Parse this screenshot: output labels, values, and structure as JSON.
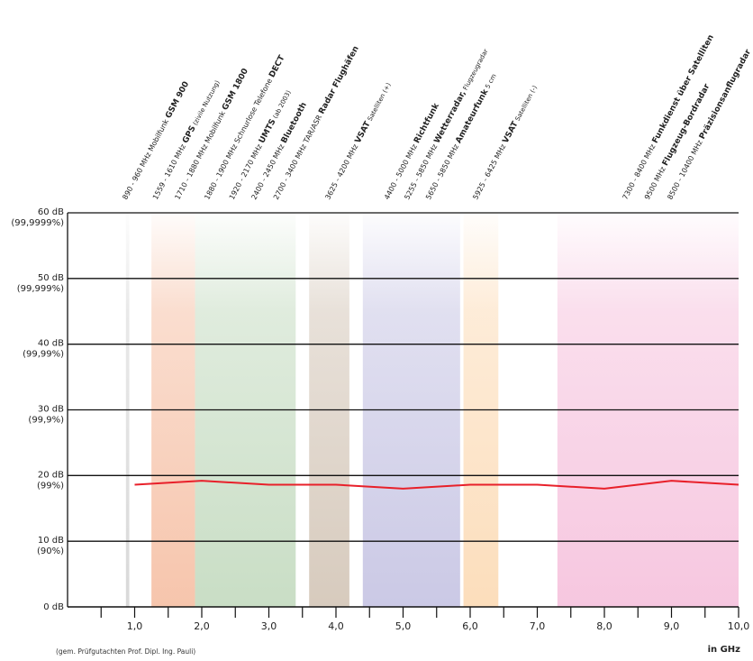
{
  "chart_data": {
    "type": "line",
    "x_unit_label": "in GHz",
    "xlim": [
      0,
      10
    ],
    "ylim": [
      0,
      60
    ],
    "x_ticks": [
      "1,0",
      "2,0",
      "3,0",
      "4,0",
      "5,0",
      "6,0",
      "7,0",
      "8,0",
      "9,0",
      "10,0"
    ],
    "y_ticks": [
      {
        "value": 0,
        "label": "0 dB",
        "sub": ""
      },
      {
        "value": 10,
        "label": "10 dB",
        "sub": "(90%)"
      },
      {
        "value": 20,
        "label": "20 dB",
        "sub": "(99%)"
      },
      {
        "value": 30,
        "label": "30 dB",
        "sub": "(99,9%)"
      },
      {
        "value": 40,
        "label": "40 dB",
        "sub": "(99,99%)"
      },
      {
        "value": 50,
        "label": "50 dB",
        "sub": "(99,999%)"
      },
      {
        "value": 60,
        "label": "60 dB",
        "sub": "(99,9999%)"
      }
    ],
    "grid": "horizontal",
    "series": [
      {
        "color": "#e8202a",
        "points": [
          [
            1.0,
            18.6
          ],
          [
            2.0,
            19.2
          ],
          [
            3.0,
            18.6
          ],
          [
            4.0,
            18.6
          ],
          [
            5.0,
            18.0
          ],
          [
            6.0,
            18.6
          ],
          [
            7.0,
            18.6
          ],
          [
            8.0,
            18.0
          ],
          [
            9.0,
            19.2
          ],
          [
            10.0,
            18.6
          ]
        ]
      }
    ],
    "bands": [
      {
        "from": 0.87,
        "to": 0.92,
        "color": "#d7d7d7"
      },
      {
        "from": 1.25,
        "to": 1.9,
        "color": "#f6c2a8"
      },
      {
        "from": 1.9,
        "to": 3.4,
        "color": "#c6dcc2"
      },
      {
        "from": 3.6,
        "to": 4.2,
        "color": "#d5c8ba"
      },
      {
        "from": 4.4,
        "to": 5.85,
        "color": "#c8c6e4"
      },
      {
        "from": 5.9,
        "to": 6.42,
        "color": "#fcdcb8"
      },
      {
        "from": 7.3,
        "to": 10.4,
        "color": "#f6c4de"
      }
    ],
    "band_labels": [
      {
        "x": 0.88,
        "plain": "890 - 960 MHz ",
        "mid": "Mobilfunk ",
        "bold": "GSM 900",
        "small": ""
      },
      {
        "x": 1.33,
        "plain": "1559 - 1610 MHz ",
        "mid": "",
        "bold": "GPS",
        "small": " (zivile Nutzung)"
      },
      {
        "x": 1.66,
        "plain": "1710 - 1880 MHz ",
        "mid": "Mobilfunk ",
        "bold": "GSM 1800",
        "small": ""
      },
      {
        "x": 2.1,
        "plain": "1880 - 1900 MHz ",
        "mid": "Schnurlose Telefone ",
        "bold": "DECT",
        "small": ""
      },
      {
        "x": 2.47,
        "plain": "1920 - 2170 MHz ",
        "mid": "",
        "bold": "UMTS",
        "small": " (ab 2003)"
      },
      {
        "x": 2.8,
        "plain": "2400 - 2450 MHz ",
        "mid": "",
        "bold": "Bluetooth",
        "small": ""
      },
      {
        "x": 3.13,
        "plain": "2700 - 3400 MHz ",
        "mid": "TAR/ASR ",
        "bold": "Radar Flughäfen",
        "small": ""
      },
      {
        "x": 3.9,
        "plain": "3625 - 4200 MHz ",
        "mid": "",
        "bold": "VSAT",
        "small": " Satelliten (+)"
      },
      {
        "x": 4.78,
        "plain": "4400 - 5000 MHz ",
        "mid": "",
        "bold": "Richtfunk",
        "small": ""
      },
      {
        "x": 5.08,
        "plain": "5255 - 5850 MHz ",
        "mid": "",
        "bold": "Wetterradar,",
        "small": " Flugzeugradar"
      },
      {
        "x": 5.4,
        "plain": "5650 - 5850 MHz ",
        "mid": "",
        "bold": "Amateurfunk",
        "small": " 5 cm"
      },
      {
        "x": 6.1,
        "plain": "5925 - 6425 MHz ",
        "mid": "",
        "bold": "VSAT",
        "small": " Satelliten (-)"
      },
      {
        "x": 8.33,
        "plain": "7300 - 8400 MHz ",
        "mid": "",
        "bold": "Funkdienst über Satelliten",
        "small": ""
      },
      {
        "x": 8.66,
        "plain": "9500 MHz ",
        "mid": "",
        "bold": "Flugzeug-Bordradar",
        "small": ""
      },
      {
        "x": 9.0,
        "plain": "8500 - 10400 MHz ",
        "mid": "",
        "bold": "Präzisionsanflugradar",
        "small": ""
      }
    ]
  },
  "footnote": "(gem. Prüfgutachten Prof. Dipl. Ing. Pauli)"
}
